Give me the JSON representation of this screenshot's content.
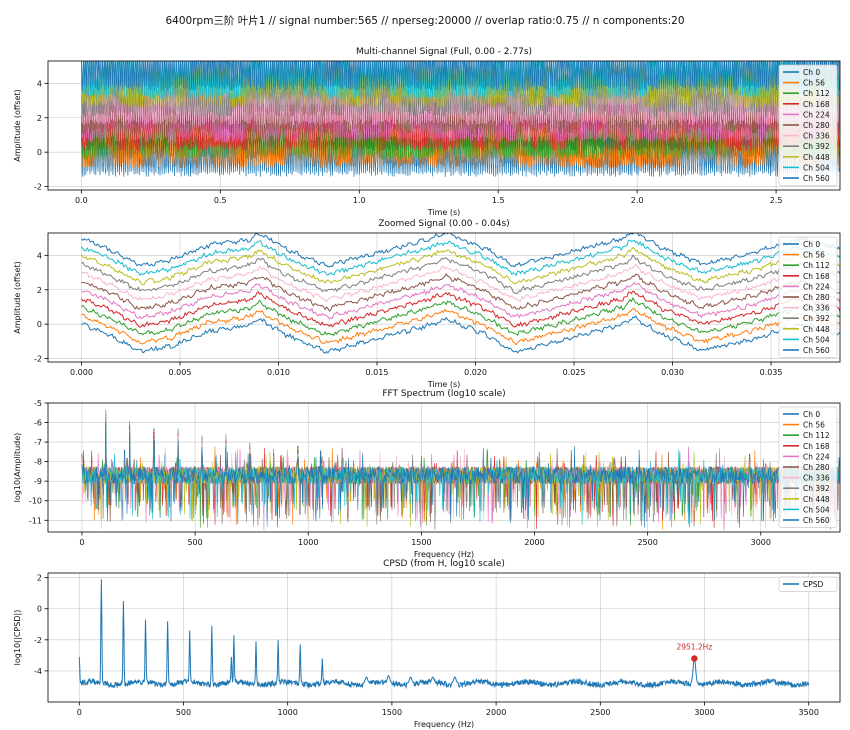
{
  "figure": {
    "suptitle": "6400rpm三阶 叶片1 // signal number:565 // nperseg:20000 // overlap ratio:0.75 // n components:20"
  },
  "chart_data": [
    {
      "type": "line",
      "title": "Multi-channel Signal (Full, 0.00 - 2.77s)",
      "xlabel": "Time (s)",
      "ylabel": "Amplitude (offset)",
      "xlim": [
        -0.12,
        2.73
      ],
      "ylim": [
        -2.2,
        5.3
      ],
      "xticks": [
        0.0,
        0.5,
        1.0,
        1.5,
        2.0,
        2.5
      ],
      "xtick_labels": [
        "0.0",
        "0.5",
        "1.0",
        "1.5",
        "2.0",
        "2.5"
      ],
      "yticks": [
        -2,
        0,
        2,
        4
      ],
      "ytick_labels": [
        "-2",
        "0",
        "2",
        "4"
      ],
      "grid": true,
      "legend": "right",
      "series": [
        {
          "name": "Ch 0",
          "color": "#1f77b4",
          "offset": 0.0
        },
        {
          "name": "Ch 56",
          "color": "#ff7f0e",
          "offset": 0.5
        },
        {
          "name": "Ch 112",
          "color": "#2ca02c",
          "offset": 1.0
        },
        {
          "name": "Ch 168",
          "color": "#d62728",
          "offset": 1.5
        },
        {
          "name": "Ch 224",
          "color": "#e377c2",
          "offset": 2.0
        },
        {
          "name": "Ch 280",
          "color": "#8c564b",
          "offset": 2.5
        },
        {
          "name": "Ch 336",
          "color": "#f7b6d2",
          "offset": 3.0
        },
        {
          "name": "Ch 392",
          "color": "#7f7f7f",
          "offset": 3.5
        },
        {
          "name": "Ch 448",
          "color": "#bcbd22",
          "offset": 4.0
        },
        {
          "name": "Ch 504",
          "color": "#17becf",
          "offset": 4.5
        },
        {
          "name": "Ch 560",
          "color": "#1f77b4",
          "offset": 5.0
        }
      ]
    },
    {
      "type": "line",
      "title": "Zoomed Signal (0.00 - 0.04s)",
      "xlabel": "Time (s)",
      "ylabel": "Amplitude (offset)",
      "xlim": [
        -0.0017,
        0.0385
      ],
      "ylim": [
        -2.2,
        5.3
      ],
      "xticks": [
        0.0,
        0.005,
        0.01,
        0.015,
        0.02,
        0.025,
        0.03,
        0.035,
        0.04
      ],
      "xtick_labels": [
        "0.000",
        "0.005",
        "0.010",
        "0.015",
        "0.020",
        "0.025",
        "0.030",
        "0.035",
        "0.040"
      ],
      "yticks": [
        -2,
        0,
        2,
        4
      ],
      "ytick_labels": [
        "-2",
        "0",
        "2",
        "4"
      ],
      "grid": true,
      "legend": "right",
      "base_curve": {
        "t": [
          0.0,
          0.0015,
          0.003,
          0.0045,
          0.0065,
          0.0085,
          0.009,
          0.0105,
          0.0125,
          0.0155,
          0.0175,
          0.0185,
          0.0205,
          0.022,
          0.0245,
          0.0275,
          0.028,
          0.0295,
          0.0315,
          0.034,
          0.0365,
          0.0385
        ],
        "y": [
          0.0,
          -0.7,
          -1.6,
          -1.3,
          -0.4,
          -0.1,
          0.3,
          -0.7,
          -1.6,
          -0.7,
          -0.1,
          0.3,
          -0.6,
          -1.6,
          -0.9,
          0.0,
          0.4,
          -0.6,
          -1.5,
          -0.9,
          0.0,
          -0.6
        ]
      },
      "series": [
        {
          "name": "Ch 0",
          "color": "#1f77b4",
          "offset": 0.0
        },
        {
          "name": "Ch 56",
          "color": "#ff7f0e",
          "offset": 0.5
        },
        {
          "name": "Ch 112",
          "color": "#2ca02c",
          "offset": 1.0
        },
        {
          "name": "Ch 168",
          "color": "#d62728",
          "offset": 1.5
        },
        {
          "name": "Ch 224",
          "color": "#e377c2",
          "offset": 2.0
        },
        {
          "name": "Ch 280",
          "color": "#8c564b",
          "offset": 2.5
        },
        {
          "name": "Ch 336",
          "color": "#f7b6d2",
          "offset": 3.0
        },
        {
          "name": "Ch 392",
          "color": "#7f7f7f",
          "offset": 3.5
        },
        {
          "name": "Ch 448",
          "color": "#bcbd22",
          "offset": 4.0
        },
        {
          "name": "Ch 504",
          "color": "#17becf",
          "offset": 4.5
        },
        {
          "name": "Ch 560",
          "color": "#1f77b4",
          "offset": 5.0
        }
      ]
    },
    {
      "type": "line",
      "title": "FFT Spectrum (log10 scale)",
      "xlabel": "Frequency (Hz)",
      "ylabel": "log10(Amplitude)",
      "xlim": [
        -150,
        3350
      ],
      "ylim": [
        -11.6,
        -5.0
      ],
      "xticks": [
        0,
        500,
        1000,
        1500,
        2000,
        2500,
        3000,
        3500
      ],
      "xtick_labels": [
        "0",
        "500",
        "1000",
        "1500",
        "2000",
        "2500",
        "3000",
        "3500"
      ],
      "yticks": [
        -11,
        -10,
        -9,
        -8,
        -7,
        -6,
        -5
      ],
      "ytick_labels": [
        "-11",
        "-10",
        "-9",
        "-8",
        "-7",
        "-6",
        "-5"
      ],
      "grid": true,
      "legend": "right",
      "noise_floor": -8.7,
      "peaks": [
        {
          "f": 0,
          "y": -7.6
        },
        {
          "f": 106,
          "y": -5.3
        },
        {
          "f": 212,
          "y": -6.0
        },
        {
          "f": 318,
          "y": -6.4
        },
        {
          "f": 424,
          "y": -6.4
        },
        {
          "f": 530,
          "y": -6.7
        },
        {
          "f": 636,
          "y": -6.7
        },
        {
          "f": 742,
          "y": -7.1
        },
        {
          "f": 848,
          "y": -7.4
        },
        {
          "f": 954,
          "y": -7.3
        },
        {
          "f": 1060,
          "y": -7.7
        },
        {
          "f": 1166,
          "y": -7.9
        },
        {
          "f": 2951,
          "y": -7.7
        }
      ],
      "series": [
        {
          "name": "Ch 0",
          "color": "#1f77b4"
        },
        {
          "name": "Ch 56",
          "color": "#ff7f0e"
        },
        {
          "name": "Ch 112",
          "color": "#2ca02c"
        },
        {
          "name": "Ch 168",
          "color": "#d62728"
        },
        {
          "name": "Ch 224",
          "color": "#e377c2"
        },
        {
          "name": "Ch 280",
          "color": "#8c564b"
        },
        {
          "name": "Ch 336",
          "color": "#f7b6d2"
        },
        {
          "name": "Ch 392",
          "color": "#7f7f7f"
        },
        {
          "name": "Ch 448",
          "color": "#bcbd22"
        },
        {
          "name": "Ch 504",
          "color": "#17becf"
        },
        {
          "name": "Ch 560",
          "color": "#1f77b4"
        }
      ]
    },
    {
      "type": "line",
      "title": "CPSD (from H, log10 scale)",
      "xlabel": "Frequency (Hz)",
      "ylabel": "log10(|CPSD|)",
      "xlim": [
        -150,
        3650
      ],
      "ylim": [
        -6.0,
        2.3
      ],
      "xticks": [
        0,
        500,
        1000,
        1500,
        2000,
        2500,
        3000,
        3500
      ],
      "xtick_labels": [
        "0",
        "500",
        "1000",
        "1500",
        "2000",
        "2500",
        "3000",
        "3500"
      ],
      "yticks": [
        -4,
        -2,
        0,
        2
      ],
      "ytick_labels": [
        "-4",
        "-2",
        "0",
        "2"
      ],
      "grid": true,
      "legend": "top-right",
      "noise_floor": -4.8,
      "peaks": [
        {
          "f": 0,
          "y": -3.1
        },
        {
          "f": 106,
          "y": 1.9
        },
        {
          "f": 212,
          "y": 0.5
        },
        {
          "f": 318,
          "y": -0.7
        },
        {
          "f": 424,
          "y": -0.8
        },
        {
          "f": 530,
          "y": -1.4
        },
        {
          "f": 636,
          "y": -1.1
        },
        {
          "f": 730,
          "y": -3.1
        },
        {
          "f": 742,
          "y": -1.7
        },
        {
          "f": 848,
          "y": -2.1
        },
        {
          "f": 954,
          "y": -2.0
        },
        {
          "f": 1060,
          "y": -2.3
        },
        {
          "f": 1166,
          "y": -3.2
        },
        {
          "f": 1378,
          "y": -4.4
        },
        {
          "f": 1484,
          "y": -4.3
        },
        {
          "f": 1590,
          "y": -4.4
        },
        {
          "f": 1696,
          "y": -4.4
        },
        {
          "f": 1802,
          "y": -4.4
        },
        {
          "f": 2951.2,
          "y": -3.2
        }
      ],
      "series": [
        {
          "name": "CPSD",
          "color": "#1f77b4"
        }
      ],
      "annotation": {
        "text": "2951.2Hz",
        "x": 2951.2,
        "y": -3.2,
        "color": "#d62728"
      }
    }
  ]
}
